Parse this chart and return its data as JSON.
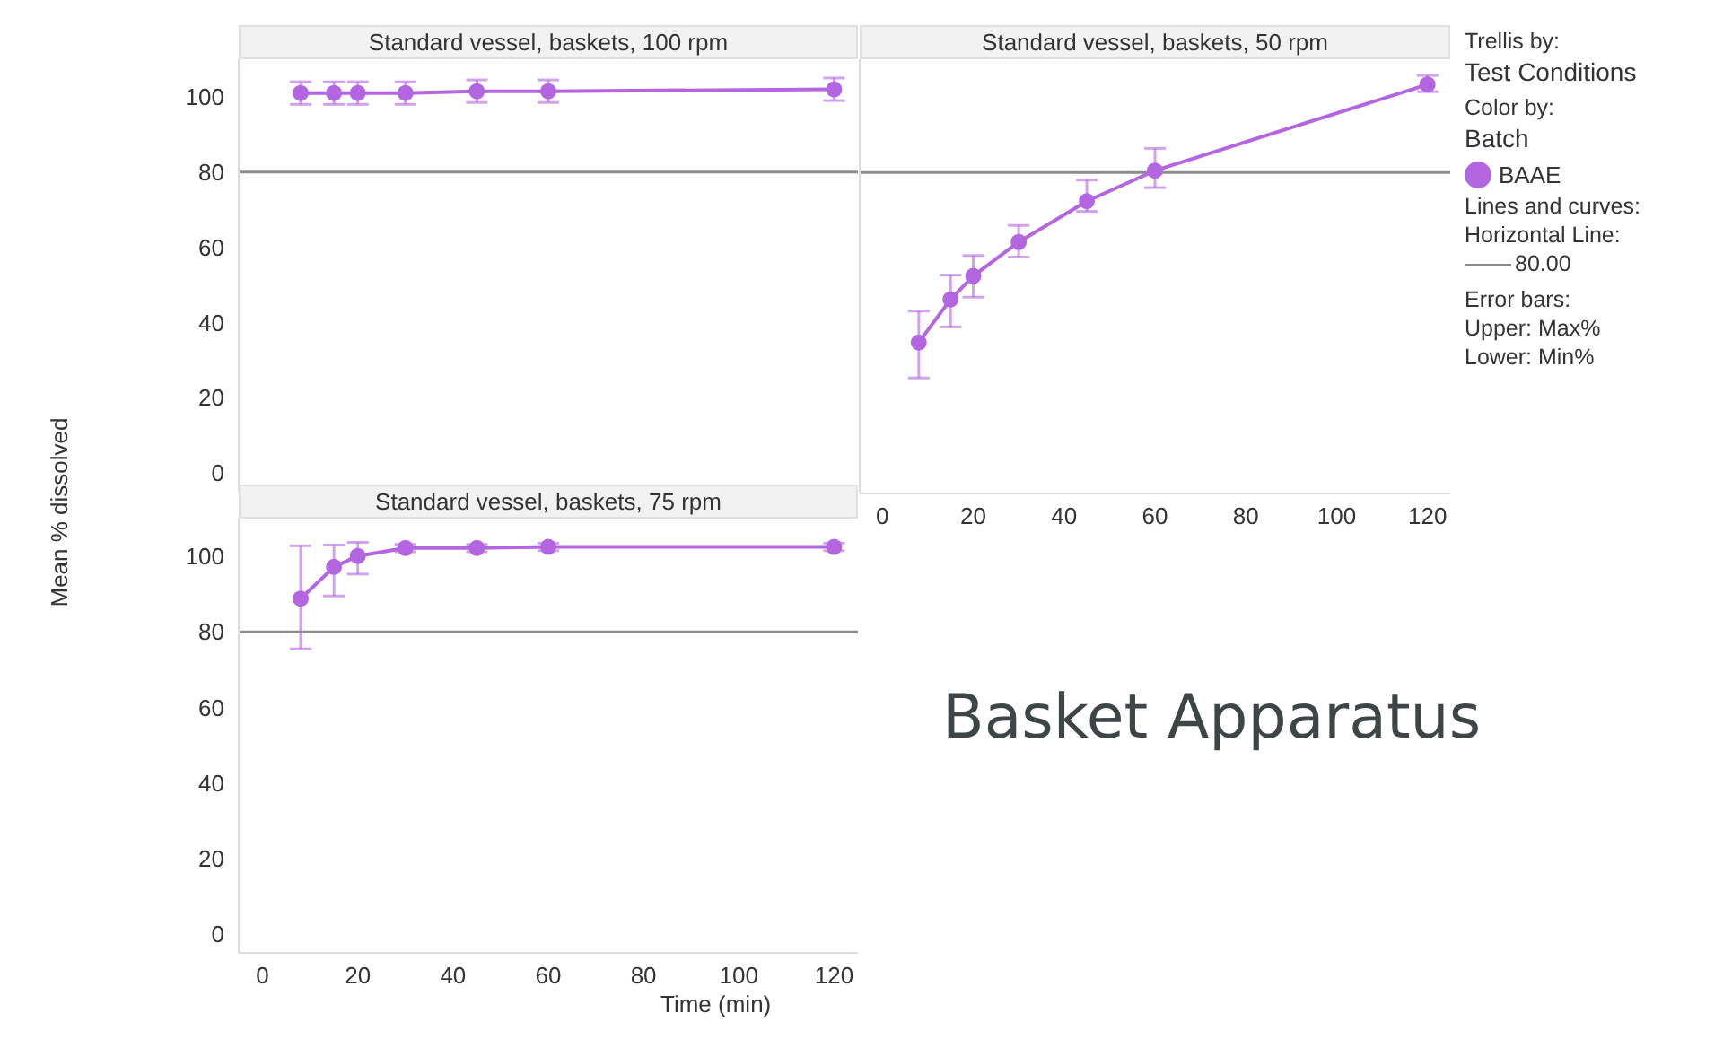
{
  "chart_data": [
    {
      "type": "line",
      "title": "Standard vessel, baskets, 100 rpm",
      "ylabel": "Mean % dissolved",
      "x": [
        8,
        15,
        20,
        30,
        45,
        60,
        120
      ],
      "xlim": [
        -5,
        125
      ],
      "xticks": [
        0,
        20,
        40,
        60,
        80,
        100,
        120
      ],
      "ylim": [
        -5,
        110
      ],
      "yticks": [
        0,
        20,
        40,
        60,
        80,
        100
      ],
      "tick_labels": "y",
      "marker": "circle",
      "grid": false,
      "ref_lines": [
        {
          "axis": "y",
          "value": 80,
          "color": "#8c8c8c"
        }
      ],
      "series": [
        {
          "color": "#b366e0",
          "values": [
            101,
            101,
            101,
            101,
            101.5,
            101.5,
            102
          ],
          "errors": [
            [
              98,
              104
            ],
            [
              98,
              104
            ],
            [
              98,
              104
            ],
            [
              98,
              104
            ],
            [
              98.5,
              104.5
            ],
            [
              98.5,
              104.5
            ],
            [
              99,
              105
            ]
          ]
        }
      ]
    },
    {
      "type": "line",
      "title": "Standard vessel, baskets, 50 rpm",
      "x": [
        8,
        15,
        20,
        30,
        45,
        60,
        120
      ],
      "xlim": [
        -5,
        125
      ],
      "xticks": [
        0,
        20,
        40,
        60,
        80,
        100,
        120
      ],
      "ylim": [
        -5,
        110
      ],
      "yticks": [
        0,
        20,
        40,
        60,
        80,
        100
      ],
      "tick_labels": "x",
      "marker": "circle",
      "grid": false,
      "legend": "right",
      "annotations": [
        "Trellis by:",
        "Test Conditions",
        "Color by:",
        "Batch",
        "Lines and curves:",
        "Horizontal Line:",
        "Error bars:",
        "Upper: Max%",
        "Lower: Min%"
      ],
      "ref_lines": [
        {
          "axis": "y",
          "value": 80,
          "label": "80.00",
          "color": "#8c8c8c"
        }
      ],
      "series": [
        {
          "name": "BAAE",
          "color": "#b366e0",
          "values": [
            35,
            46.4,
            52.6,
            61.6,
            72.4,
            80.5,
            103.3
          ],
          "errors": [
            [
              25.6,
              43.3
            ],
            [
              39.1,
              52.8
            ],
            [
              47,
              58
            ],
            [
              57.6,
              66
            ],
            [
              69.7,
              78
            ],
            [
              76,
              86.4
            ],
            [
              101.4,
              105.7
            ]
          ]
        }
      ]
    },
    {
      "type": "line",
      "title": "Standard vessel, baskets, 75 rpm",
      "xlabel": "Time (min)",
      "x": [
        8,
        15,
        20,
        30,
        45,
        60,
        120
      ],
      "xlim": [
        -5,
        125
      ],
      "xticks": [
        0,
        20,
        40,
        60,
        80,
        100,
        120
      ],
      "ylim": [
        -5,
        110
      ],
      "yticks": [
        0,
        20,
        40,
        60,
        80,
        100
      ],
      "marker": "circle",
      "grid": false,
      "annotations": [
        "Basket Apparatus"
      ],
      "ref_lines": [
        {
          "axis": "y",
          "value": 80,
          "color": "#8c8c8c"
        }
      ],
      "series": [
        {
          "color": "#b366e0",
          "values": [
            88.8,
            97.2,
            100.1,
            102.2,
            102.2,
            102.5,
            102.5
          ],
          "errors": [
            [
              75.5,
              102.8
            ],
            [
              89.5,
              103
            ],
            [
              95.3,
              103.7
            ],
            [
              101.2,
              103.2
            ],
            [
              101.2,
              103.2
            ],
            [
              101.5,
              103.5
            ],
            [
              101.5,
              103.5
            ]
          ]
        }
      ]
    }
  ]
}
